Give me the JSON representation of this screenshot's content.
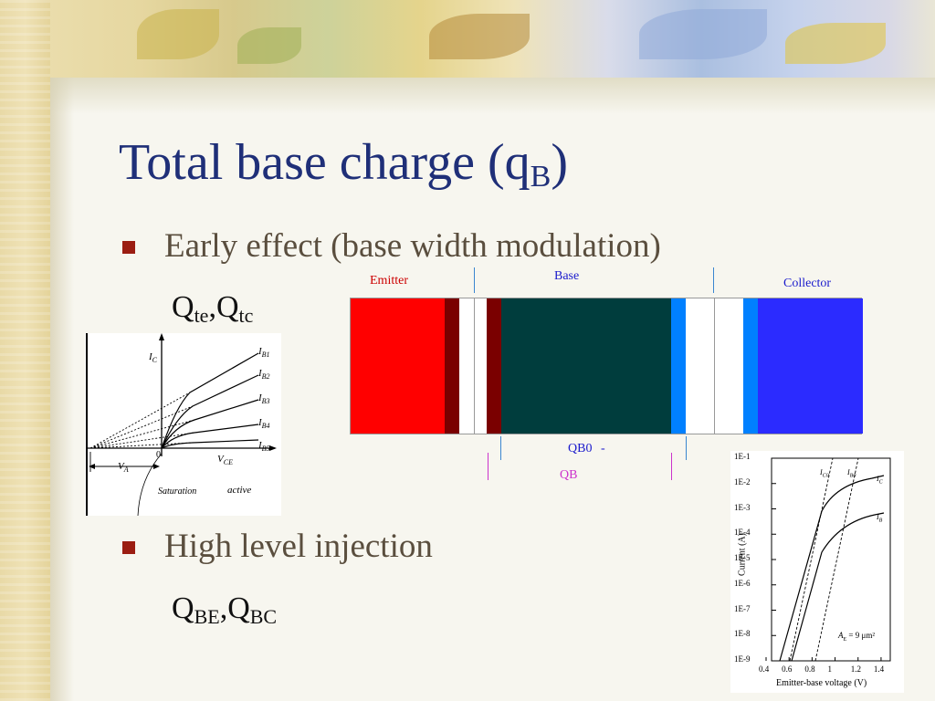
{
  "title": {
    "main": "Total base charge (q",
    "sub": "B",
    "close": ")"
  },
  "bullets": [
    {
      "text": "Early effect (base width modulation)",
      "sub_line": {
        "q1": "Q",
        "s1": "te",
        "comma": ",",
        "q2": "Q",
        "s2": "tc"
      }
    },
    {
      "text": "High level injection",
      "sub_line": {
        "q1": "Q",
        "s1": "BE",
        "comma": ",",
        "q2": "Q",
        "s2": "BC"
      }
    }
  ],
  "band_diagram": {
    "emitter_label": "Emitter",
    "base_label": "Base",
    "collector_label": "Collector",
    "qb0_label": "QB0",
    "qb0_mark": "-",
    "qb_label": "QB",
    "colors": {
      "emitter": "#ff0000",
      "emitter_edge": "#7a0000",
      "base": "#003d3d",
      "collector_edge": "#0080ff",
      "collector": "#2b2bff",
      "label_red": "#cc0000",
      "label_blue": "#1a1acc",
      "label_magenta": "#cc33cc"
    }
  },
  "iv_sketch": {
    "ic_label": "I",
    "ic_sub": "C",
    "ib_curves": [
      {
        "label": "I",
        "sub": "B1"
      },
      {
        "label": "I",
        "sub": "B2"
      },
      {
        "label": "I",
        "sub": "B3"
      },
      {
        "label": "I",
        "sub": "B4"
      },
      {
        "label": "I",
        "sub": "B5"
      }
    ],
    "va_label": "V",
    "va_sub": "A",
    "vce_label": "V",
    "vce_sub": "CE",
    "zero_label": "0",
    "saturation_label": "Saturation",
    "active_label": "active"
  },
  "log_plot": {
    "ylabel": "Current (A)",
    "xlabel": "Emitter-base voltage (V)",
    "y_ticks": [
      "1E-1",
      "1E-2",
      "1E-3",
      "1E-4",
      "1E-5",
      "1E-6",
      "1E-7",
      "1E-8",
      "1E-9"
    ],
    "x_ticks": [
      "0.4",
      "0.6",
      "0.8",
      "1",
      "1.2",
      "1.4"
    ],
    "curve_labels": {
      "ic0": "I",
      "ic0_sub": "C0",
      "ib0": "I",
      "ib0_sub": "B0",
      "ic": "I",
      "ic_sub": "C",
      "ib": "I",
      "ib_sub": "B"
    },
    "annotation": "A",
    "annotation_sub": "E",
    "annotation_rest": " = 9 μm²"
  }
}
